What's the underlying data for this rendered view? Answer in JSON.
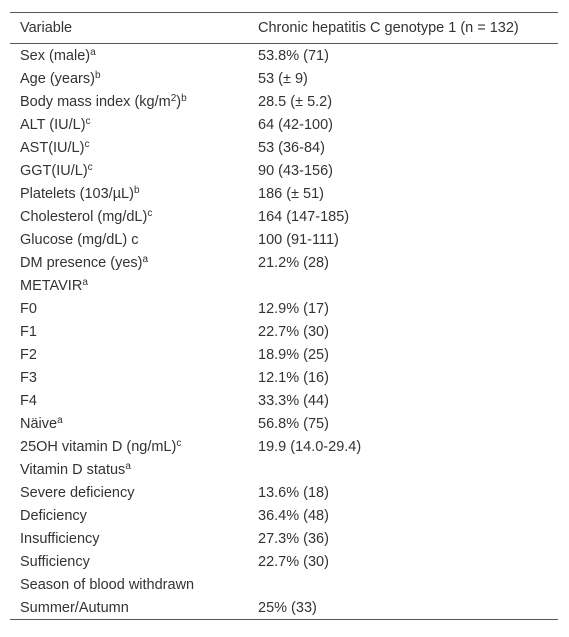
{
  "table": {
    "header": [
      "Variable",
      "Chronic hepatitis C genotype 1 (n = 132)"
    ],
    "rows": [
      {
        "label": [
          "Sex (male)",
          "a"
        ],
        "value": "53.8% (71)"
      },
      {
        "label": [
          "Age (years)",
          "b"
        ],
        "value": "53 (± 9)"
      },
      {
        "label": [
          "Body mass index (kg/m",
          "2",
          ")",
          "b"
        ],
        "value": "28.5 (± 5.2)"
      },
      {
        "label": [
          "ALT (IU/L)",
          "c"
        ],
        "value": "64 (42-100)"
      },
      {
        "label": [
          "AST(IU/L)",
          "c"
        ],
        "value": "53 (36-84)"
      },
      {
        "label": [
          "GGT(IU/L)",
          "c"
        ],
        "value": "90 (43-156)"
      },
      {
        "label": [
          "Platelets (103/µL)",
          "b"
        ],
        "value": "186 (± 51)"
      },
      {
        "label": [
          "Cholesterol (mg/dL)",
          "c"
        ],
        "value": "164 (147-185)"
      },
      {
        "label": [
          "Glucose (mg/dL) c"
        ],
        "value": "100 (91-111)"
      },
      {
        "label": [
          "DM presence (yes)",
          "a"
        ],
        "value": "21.2% (28)"
      },
      {
        "label": [
          "METAVIR",
          "a"
        ]
      },
      {
        "label": [
          "F0"
        ],
        "value": "12.9% (17)"
      },
      {
        "label": [
          "F1"
        ],
        "value": "22.7% (30)"
      },
      {
        "label": [
          "F2"
        ],
        "value": "18.9% (25)"
      },
      {
        "label": [
          "F3"
        ],
        "value": "12.1% (16)"
      },
      {
        "label": [
          "F4"
        ],
        "value": "33.3% (44)"
      },
      {
        "label": [
          "Näive",
          "a"
        ],
        "value": "56.8% (75)"
      },
      {
        "label": [
          "25OH vitamin D (ng/mL)",
          "c"
        ],
        "value": "19.9 (14.0-29.4)"
      },
      {
        "label": [
          "Vitamin D status",
          "a"
        ]
      },
      {
        "label": [
          "Severe deficiency"
        ],
        "value": "13.6% (18)"
      },
      {
        "label": [
          "Deficiency"
        ],
        "value": "36.4% (48)"
      },
      {
        "label": [
          "Insufficiency"
        ],
        "value": "27.3% (36)"
      },
      {
        "label": [
          "Sufficiency"
        ],
        "value": "22.7% (30)"
      },
      {
        "label": [
          "Season of blood withdrawn"
        ]
      },
      {
        "label": [
          "Summer/Autumn"
        ],
        "value": "25% (33)"
      }
    ]
  }
}
